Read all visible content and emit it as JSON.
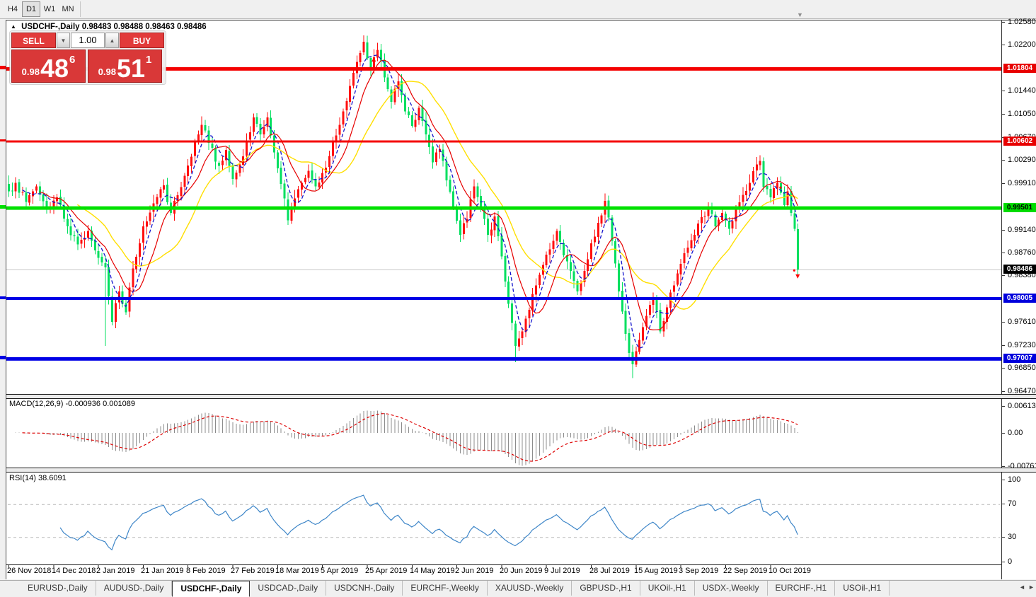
{
  "toolbar": {
    "timeframes": [
      {
        "label": "H4",
        "active": false
      },
      {
        "label": "D1",
        "active": true
      },
      {
        "label": "W1",
        "active": false
      },
      {
        "label": "MN",
        "active": false
      }
    ]
  },
  "misc": {
    "autoscroll_icon": "▼",
    "title_collapse_icon": "▲"
  },
  "chart_header": {
    "symbol_period": "USDCHF-,Daily",
    "ohlc_text": "0.98483 0.98488 0.98463 0.98486"
  },
  "trade_panel": {
    "sell_label": "SELL",
    "buy_label": "BUY",
    "volume_value": "1.00",
    "decrease_icon": "▼",
    "increase_icon": "▲",
    "sell_price": {
      "base": "0.98",
      "big": "48",
      "sup": "6"
    },
    "buy_price": {
      "base": "0.98",
      "big": "51",
      "sup": "1"
    }
  },
  "colors": {
    "bull": "#FF0F0F",
    "bear": "#00DF5F",
    "ma_fast": "#1414CC",
    "ma_mid": "#E60000",
    "ma_slow": "#FFDF00",
    "macd_bar": "#8C8C8C",
    "macd_signal": "#DD0000",
    "rsi_line": "#3E86C8",
    "level_line": "#B9B9B9",
    "current_price_line": "#C8C8C8",
    "marker": "#FF0000"
  },
  "chart_data": {
    "type": "candlestick",
    "symbol": "USDCHF",
    "period": "Daily",
    "x_labels": [
      {
        "date": "26 Nov 2018",
        "idx": 0
      },
      {
        "date": "14 Dec 2018",
        "idx": 13
      },
      {
        "date": "2 Jan 2019",
        "idx": 26
      },
      {
        "date": "21 Jan 2019",
        "idx": 39
      },
      {
        "date": "8 Feb 2019",
        "idx": 52
      },
      {
        "date": "27 Feb 2019",
        "idx": 65
      },
      {
        "date": "18 Mar 2019",
        "idx": 78
      },
      {
        "date": "5 Apr 2019",
        "idx": 91
      },
      {
        "date": "25 Apr 2019",
        "idx": 104
      },
      {
        "date": "14 May 2019",
        "idx": 117
      },
      {
        "date": "2 Jun 2019",
        "idx": 130
      },
      {
        "date": "20 Jun 2019",
        "idx": 143
      },
      {
        "date": "9 Jul 2019",
        "idx": 156
      },
      {
        "date": "28 Jul 2019",
        "idx": 169
      },
      {
        "date": "15 Aug 2019",
        "idx": 182
      },
      {
        "date": "3 Sep 2019",
        "idx": 195
      },
      {
        "date": "22 Sep 2019",
        "idx": 208
      },
      {
        "date": "10 Oct 2019",
        "idx": 221
      }
    ],
    "price_axis_ticks": [
      "1.02580",
      "1.02200",
      "1.01440",
      "1.01050",
      "1.00670",
      "1.00290",
      "0.99910",
      "0.99140",
      "0.98760",
      "0.98380",
      "0.97610",
      "0.97230",
      "0.96850",
      "0.96470"
    ],
    "price_lines": [
      {
        "value": 1.01804,
        "label": "1.01804",
        "color": "#F40000",
        "thickness": 5,
        "label_bg": "#E80000",
        "label_fg": "#FFFFFF"
      },
      {
        "value": 1.00602,
        "label": "1.00602",
        "color": "#F40000",
        "thickness": 3,
        "label_bg": "#E80000",
        "label_fg": "#FFFFFF"
      },
      {
        "value": 0.99501,
        "label": "0.99501",
        "color": "#00E100",
        "thickness": 5,
        "label_bg": "#00DC00",
        "label_fg": "#000000"
      },
      {
        "value": 0.98005,
        "label": "0.98005",
        "color": "#0000E6",
        "thickness": 4,
        "label_bg": "#0000DC",
        "label_fg": "#FFFFFF"
      },
      {
        "value": 0.97007,
        "label": "0.97007",
        "color": "#0000E6",
        "thickness": 5,
        "label_bg": "#0000DC",
        "label_fg": "#FFFFFF"
      }
    ],
    "current_price_badge": {
      "value": 0.98486,
      "label": "0.98486",
      "bg": "#000000",
      "fg": "#FFFFFF"
    },
    "n_candles": 230,
    "seed": 7,
    "price_anchors": [
      [
        0,
        0.9978
      ],
      [
        2,
        0.9992
      ],
      [
        5,
        0.996
      ],
      [
        8,
        0.9986
      ],
      [
        11,
        0.995
      ],
      [
        14,
        0.9968
      ],
      [
        17,
        0.992
      ],
      [
        20,
        0.989
      ],
      [
        23,
        0.9912
      ],
      [
        26,
        0.9868
      ],
      [
        28,
        0.9852
      ],
      [
        30,
        0.9762
      ],
      [
        32,
        0.9812
      ],
      [
        34,
        0.9778
      ],
      [
        36,
        0.985
      ],
      [
        39,
        0.992
      ],
      [
        42,
        0.9958
      ],
      [
        45,
        0.9988
      ],
      [
        47,
        0.9942
      ],
      [
        50,
        0.9985
      ],
      [
        53,
        1.0035
      ],
      [
        56,
        1.0088
      ],
      [
        58,
        1.0058
      ],
      [
        61,
        1.002
      ],
      [
        63,
        1.0046
      ],
      [
        65,
        0.9998
      ],
      [
        67,
        1.0022
      ],
      [
        69,
        1.0062
      ],
      [
        71,
        1.01
      ],
      [
        73,
        1.0072
      ],
      [
        75,
        1.01
      ],
      [
        77,
        1.0042
      ],
      [
        79,
        0.999
      ],
      [
        81,
        0.993
      ],
      [
        83,
        0.9966
      ],
      [
        85,
        0.9992
      ],
      [
        87,
        1.0012
      ],
      [
        89,
        0.9986
      ],
      [
        91,
        1.0008
      ],
      [
        93,
        1.0036
      ],
      [
        95,
        1.007
      ],
      [
        97,
        1.011
      ],
      [
        99,
        1.0152
      ],
      [
        101,
        1.0192
      ],
      [
        103,
        1.0225
      ],
      [
        105,
        1.0182
      ],
      [
        107,
        1.0212
      ],
      [
        109,
        1.0166
      ],
      [
        111,
        1.0126
      ],
      [
        113,
        1.016
      ],
      [
        115,
        1.011
      ],
      [
        117,
        1.0086
      ],
      [
        119,
        1.0116
      ],
      [
        121,
        1.0072
      ],
      [
        123,
        1.0026
      ],
      [
        125,
        1.0048
      ],
      [
        127,
        0.9996
      ],
      [
        129,
        0.995
      ],
      [
        131,
        0.9906
      ],
      [
        133,
        0.9932
      ],
      [
        135,
        0.9986
      ],
      [
        137,
        0.995
      ],
      [
        139,
        0.9906
      ],
      [
        141,
        0.9936
      ],
      [
        143,
        0.987
      ],
      [
        145,
        0.9792
      ],
      [
        147,
        0.9722
      ],
      [
        149,
        0.9746
      ],
      [
        151,
        0.9782
      ],
      [
        153,
        0.9822
      ],
      [
        155,
        0.9856
      ],
      [
        157,
        0.9882
      ],
      [
        159,
        0.9912
      ],
      [
        161,
        0.9872
      ],
      [
        163,
        0.9846
      ],
      [
        165,
        0.9812
      ],
      [
        167,
        0.9846
      ],
      [
        169,
        0.9892
      ],
      [
        171,
        0.9926
      ],
      [
        173,
        0.9962
      ],
      [
        175,
        0.9896
      ],
      [
        177,
        0.9812
      ],
      [
        179,
        0.9742
      ],
      [
        181,
        0.9692
      ],
      [
        183,
        0.9732
      ],
      [
        185,
        0.9772
      ],
      [
        187,
        0.9802
      ],
      [
        189,
        0.9746
      ],
      [
        191,
        0.9786
      ],
      [
        193,
        0.9822
      ],
      [
        195,
        0.9858
      ],
      [
        197,
        0.9885
      ],
      [
        199,
        0.9906
      ],
      [
        201,
        0.9935
      ],
      [
        203,
        0.9948
      ],
      [
        205,
        0.992
      ],
      [
        207,
        0.9942
      ],
      [
        209,
        0.9916
      ],
      [
        211,
        0.995
      ],
      [
        213,
        0.9972
      ],
      [
        215,
        0.9992
      ],
      [
        217,
        1.0022
      ],
      [
        218,
        1.0028
      ],
      [
        219,
        0.9985
      ],
      [
        221,
        0.9968
      ],
      [
        223,
        0.9992
      ],
      [
        225,
        0.9955
      ],
      [
        226,
        0.9978
      ],
      [
        227,
        0.9942
      ],
      [
        228,
        0.9916
      ],
      [
        229,
        0.98486
      ]
    ],
    "special_wicks": [
      {
        "i": 28,
        "low": 0.9722
      },
      {
        "i": 103,
        "high": 1.0236
      },
      {
        "i": 147,
        "low": 0.9695
      },
      {
        "i": 181,
        "low": 0.9669
      },
      {
        "i": 229,
        "low": 0.9838
      }
    ],
    "ma_periods": {
      "fast": 5,
      "mid": 10,
      "slow": 21
    },
    "markers": [
      {
        "i": 106,
        "price": 1.0196,
        "shape": "arrow-up"
      },
      {
        "i": 224,
        "price": 0.9984,
        "shape": "dot"
      },
      {
        "i": 228,
        "price": 0.9847,
        "shape": "dot"
      },
      {
        "i": 229,
        "price": 0.9837,
        "shape": "arrow-down"
      }
    ],
    "macd": {
      "name": "MACD(12,26,9)",
      "values_text": "-0.000936 0.001089",
      "params": [
        12,
        26,
        9
      ],
      "axis_ticks": [
        {
          "label": "0.00613",
          "value": 0.00613
        },
        {
          "label": "0.00",
          "value": 0
        },
        {
          "label": "-0.007612",
          "value": -0.007612
        }
      ]
    },
    "rsi": {
      "name": "RSI(14)",
      "value_text": "38.6091",
      "period": 14,
      "axis_ticks": [
        {
          "label": "100",
          "value": 100
        },
        {
          "label": "70",
          "value": 70
        },
        {
          "label": "30",
          "value": 30
        },
        {
          "label": "0",
          "value": 0
        }
      ],
      "levels": [
        70,
        30
      ]
    }
  },
  "tabs": {
    "active_index": 2,
    "items": [
      "EURUSD-,Daily",
      "AUDUSD-,Daily",
      "USDCHF-,Daily",
      "USDCAD-,Daily",
      "USDCNH-,Daily",
      "EURCHF-,Weekly",
      "XAUUSD-,Weekly",
      "GBPUSD-,H1",
      "UKOil-,H1",
      "USDX-,Weekly",
      "EURCHF-,H1",
      "USOil-,H1"
    ],
    "scroll_left_icon": "◄",
    "scroll_right_icon": "►"
  }
}
